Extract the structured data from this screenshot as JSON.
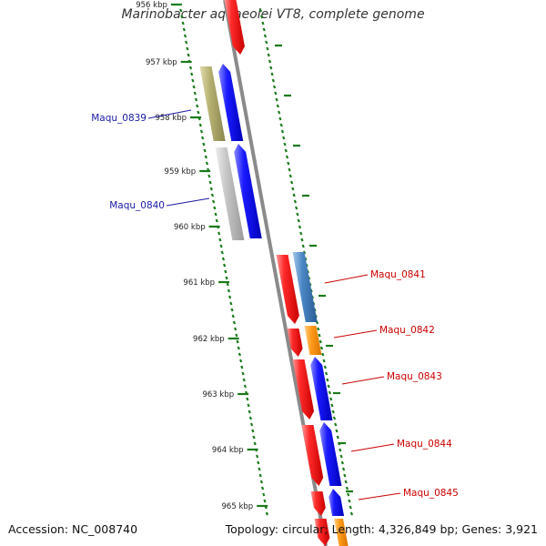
{
  "title": "Marinobacter aquaeolei VT8, complete genome",
  "accession": "Accession: NC_008740",
  "summary": "Topology: circular; Length: 4,326,849 bp; Genes: 3,921",
  "ticks": [
    "956 kbp",
    "957 kbp",
    "958 kbp",
    "959 kbp",
    "960 kbp",
    "961 kbp",
    "962 kbp",
    "963 kbp",
    "964 kbp",
    "965 kbp"
  ],
  "gene_labels": [
    {
      "name": "Maqu_0839",
      "color": "#1a1aa6"
    },
    {
      "name": "Maqu_0840",
      "color": "#1a1aa6"
    },
    {
      "name": "Maqu_0841",
      "color": "#cc0000"
    },
    {
      "name": "Maqu_0842",
      "color": "#cc0000"
    },
    {
      "name": "Maqu_0843",
      "color": "#cc0000"
    },
    {
      "name": "Maqu_0844",
      "color": "#cc0000"
    },
    {
      "name": "Maqu_0845",
      "color": "#cc0000"
    }
  ],
  "colors": {
    "backbone": "#888888",
    "scale": "#1a7a1a",
    "forward_gene": "#ff1a1a",
    "reverse_gene": "#1a1aff",
    "olive_feature": "#b5b070",
    "grey_feature": "#c4c4c4",
    "steelblue_feature": "#4a86c4",
    "orange_feature": "#ff9a1a"
  }
}
